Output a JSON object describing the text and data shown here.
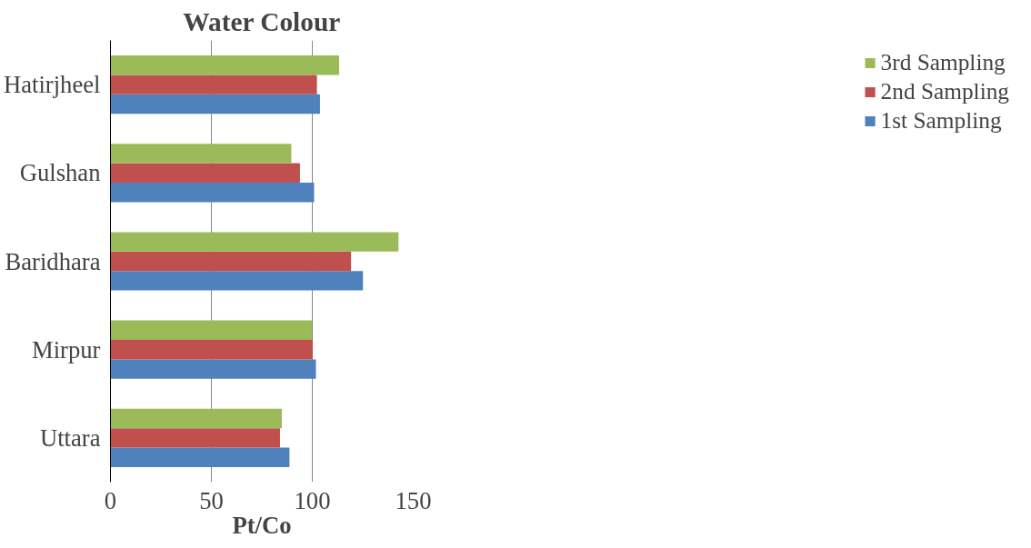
{
  "chart_data": {
    "type": "bar",
    "orientation": "horizontal",
    "title": "Water Colour",
    "xlabel": "Pt/Co",
    "categories": [
      "Hatirjheel",
      "Gulshan",
      "Baridhara",
      "Mirpur",
      "Uttara"
    ],
    "series": [
      {
        "name": "1st Sampling",
        "color": "#4f81bd",
        "values": [
          103.8,
          100.9,
          125.1,
          101.8,
          88.7
        ]
      },
      {
        "name": "2nd Sampling",
        "color": "#c0504d",
        "values": [
          102.3,
          93.9,
          119.2,
          100.2,
          84.0
        ]
      },
      {
        "name": "3rd Sampling",
        "color": "#9bbb59",
        "values": [
          113.3,
          89.6,
          142.7,
          99.8,
          84.9
        ]
      }
    ],
    "xlim": [
      0,
      150
    ],
    "xticks": [
      0,
      50,
      100,
      150
    ],
    "grid": "x",
    "legend": "right"
  }
}
